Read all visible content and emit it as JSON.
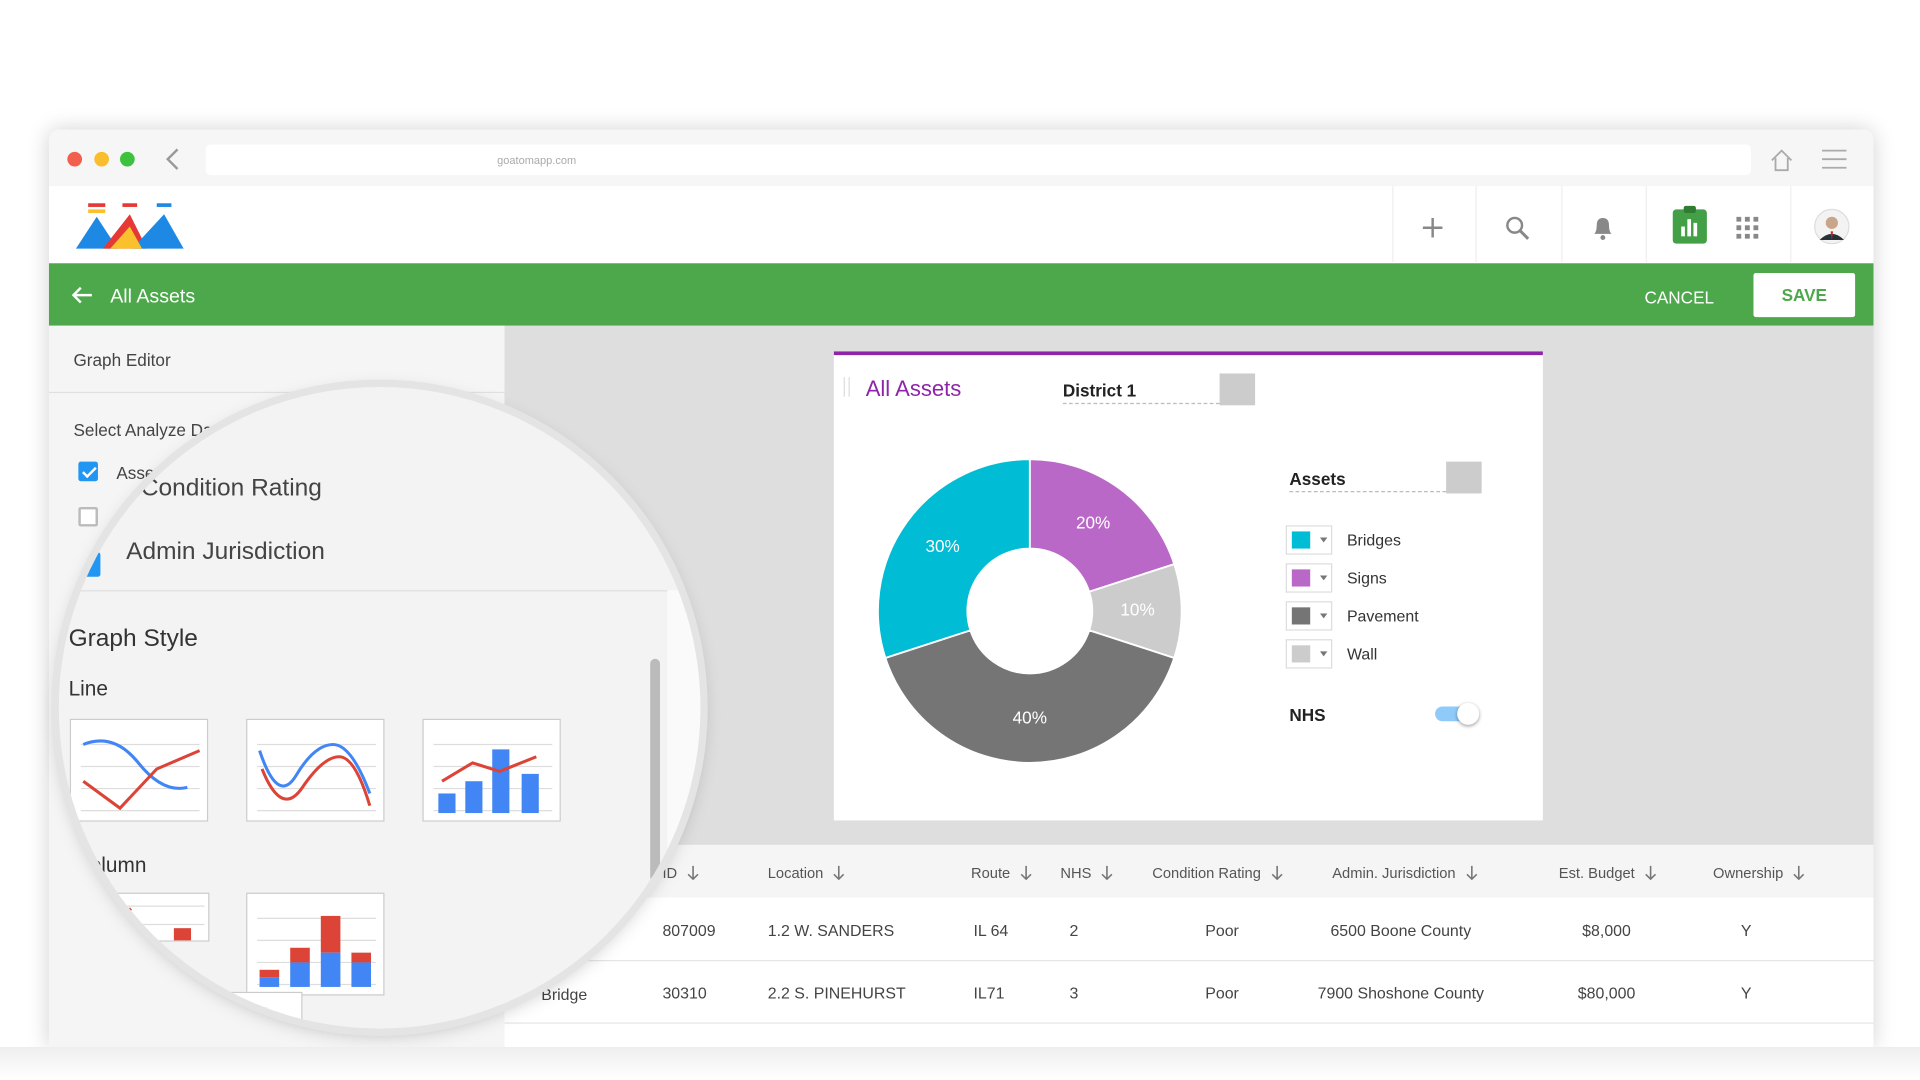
{
  "browser": {
    "url": "goatomapp.com"
  },
  "toolbar": {
    "title": "All Assets",
    "cancel": "CANCEL",
    "save": "SAVE"
  },
  "editor": {
    "title": "Graph Editor",
    "select_label": "Select Analyze Data",
    "options": [
      {
        "label": "Assets",
        "checked": true
      },
      {
        "label": "Condition Rating",
        "checked": false
      },
      {
        "label": "Admin Jurisdiction",
        "checked": true
      }
    ],
    "graph_style": "Graph Style",
    "line": "Line",
    "column": "Column"
  },
  "card": {
    "title": "All Assets",
    "filter": "District 1",
    "legend_title": "Assets",
    "legend": [
      {
        "name": "Bridges",
        "color": "#00bcd4"
      },
      {
        "name": "Signs",
        "color": "#ba68c8"
      },
      {
        "name": "Pavement",
        "color": "#757575"
      },
      {
        "name": "Wall",
        "color": "#cccccc"
      }
    ],
    "toggle": "NHS",
    "chart_data": {
      "type": "donut",
      "values": [
        20,
        10,
        40,
        30
      ],
      "value_labels": [
        "20%",
        "10%",
        "40%",
        "30%"
      ],
      "colors": [
        "#ba68c8",
        "#cccccc",
        "#757575",
        "#00bcd4"
      ]
    }
  },
  "table": {
    "headers": [
      "ID",
      "Location",
      "Route",
      "NHS",
      "Condition Rating",
      "Admin. Jurisdiction",
      "Est. Budget",
      "Ownership"
    ],
    "rows": [
      {
        "cells": [
          "807009",
          "1.2 W. SANDERS",
          "IL 64",
          "2",
          "Poor",
          "6500 Boone County",
          "$8,000",
          "Y"
        ]
      },
      {
        "type": "Bridge",
        "cells": [
          "30310",
          "2.2 S. PINEHURST",
          "IL71",
          "3",
          "Poor",
          "7900 Shoshone County",
          "$80,000",
          "Y"
        ]
      }
    ]
  }
}
